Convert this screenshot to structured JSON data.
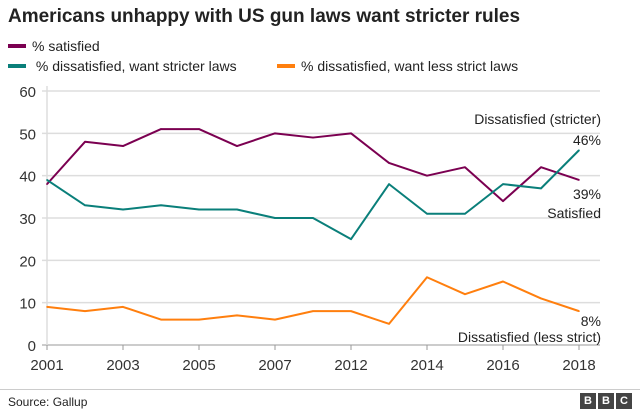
{
  "chart_data": {
    "type": "line",
    "title": "Americans unhappy with US gun laws want stricter rules",
    "x": [
      2001,
      2002,
      2003,
      2004,
      2005,
      2006,
      2007,
      2008,
      2012,
      2013,
      2014,
      2015,
      2016,
      2017,
      2018
    ],
    "xticks": [
      "2001",
      "2003",
      "2005",
      "2007",
      "2012",
      "2014",
      "2016",
      "2018"
    ],
    "yticks": [
      "0",
      "10",
      "20",
      "30",
      "40",
      "50",
      "60"
    ],
    "ylim": [
      0,
      60
    ],
    "grid": true,
    "legend_position": "top-left",
    "series": [
      {
        "name": "% satisfied",
        "color": "#7b0051",
        "values": [
          38,
          48,
          47,
          51,
          51,
          47,
          50,
          49,
          50,
          43,
          40,
          42,
          34,
          42,
          39
        ]
      },
      {
        "name": " % dissatisfied, want stricter laws",
        "color": "#0a7f7a",
        "values": [
          39,
          33,
          32,
          33,
          32,
          32,
          30,
          30,
          25,
          38,
          31,
          31,
          38,
          37,
          46
        ]
      },
      {
        "name": "% dissatisfied, want less strict laws",
        "color": "#ff7f0e",
        "values": [
          9,
          8,
          9,
          6,
          6,
          7,
          6,
          8,
          8,
          5,
          16,
          12,
          15,
          11,
          8
        ]
      }
    ],
    "annotations": [
      {
        "text": "Dissatisfied (stricter)"
      },
      {
        "text": "46%"
      },
      {
        "text": "39%"
      },
      {
        "text": "Satisfied"
      },
      {
        "text": "8%"
      },
      {
        "text": "Dissatisfied (less strict)"
      }
    ]
  },
  "footer": {
    "source": "Source: Gallup",
    "logo": [
      "B",
      "B",
      "C"
    ]
  }
}
